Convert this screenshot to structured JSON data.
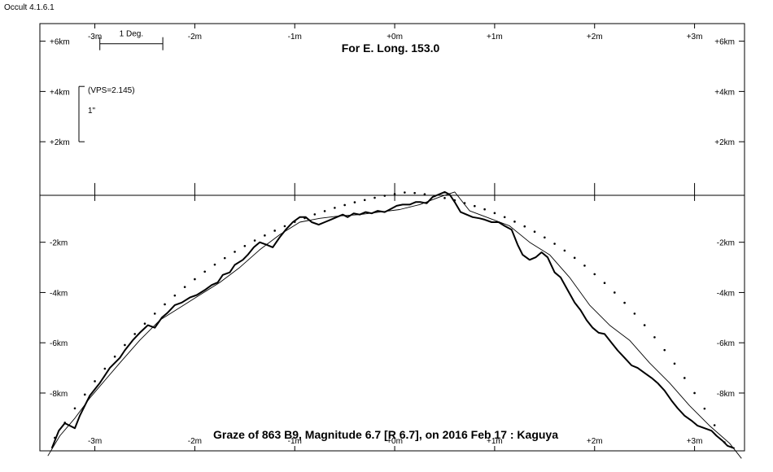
{
  "app": {
    "title": "Occult 4.1.6.1"
  },
  "chart_data": {
    "type": "line",
    "title": "For E. Long. 153.0",
    "footer": "Graze of  863 B9,  Magnitude 6.7 [R 6.7],  on 2016 Feb 17  :  Kaguya",
    "x_ticks": [
      "-3m",
      "-2m",
      "-1m",
      "+0m",
      "+1m",
      "+2m",
      "+3m"
    ],
    "x_tick_values": [
      -3,
      -2,
      -1,
      0,
      1,
      2,
      3
    ],
    "y_ticks": [
      "+6km",
      "+4km",
      "+2km",
      "-2km",
      "-4km",
      "-6km",
      "-8km"
    ],
    "y_tick_values": [
      6,
      4,
      2,
      -2,
      -4,
      -6,
      -8
    ],
    "xlim": [
      -3.55,
      3.5
    ],
    "ylim": [
      -10.3,
      6.7
    ],
    "grid": false,
    "scale_bar": {
      "label": "1 Deg.",
      "x_from": -2.95,
      "x_to": -2.32,
      "y": 5.9
    },
    "vertical_scale": {
      "label": "(VPS=2.145)",
      "sublabel": "1\"",
      "y_from": 2.0,
      "y_to": 4.2
    },
    "series": [
      {
        "style": "bold",
        "x": [
          -3.43,
          -3.36,
          -3.3,
          -3.25,
          -3.2,
          -3.15,
          -3.05,
          -2.95,
          -2.85,
          -2.75,
          -2.7,
          -2.62,
          -2.55,
          -2.47,
          -2.4,
          -2.33,
          -2.27,
          -2.2,
          -2.13,
          -2.05,
          -1.98,
          -1.9,
          -1.83,
          -1.77,
          -1.72,
          -1.65,
          -1.6,
          -1.52,
          -1.47,
          -1.41,
          -1.35,
          -1.28,
          -1.22,
          -1.15,
          -1.09,
          -1.02,
          -0.95,
          -0.89,
          -0.83,
          -0.76,
          -0.7,
          -0.64,
          -0.58,
          -0.52,
          -0.47,
          -0.41,
          -0.35,
          -0.29,
          -0.23,
          -0.17,
          -0.1,
          -0.05,
          0.02,
          0.08,
          0.15,
          0.21,
          0.26,
          0.32,
          0.38,
          0.44,
          0.5,
          0.55,
          0.6,
          0.66,
          0.72,
          0.78,
          0.85,
          0.9,
          0.97,
          1.04,
          1.1,
          1.17,
          1.23,
          1.28,
          1.35,
          1.41,
          1.47,
          1.53,
          1.6,
          1.66,
          1.73,
          1.8,
          1.86,
          1.92,
          1.98,
          2.04,
          2.1,
          2.17,
          2.23,
          2.3,
          2.37,
          2.43,
          2.5,
          2.57,
          2.63,
          2.7,
          2.77,
          2.83,
          2.9,
          2.97,
          3.03,
          3.1,
          3.17,
          3.22,
          3.28,
          3.33,
          3.4
        ],
        "y": [
          -10.2,
          -9.5,
          -9.2,
          -9.3,
          -9.4,
          -8.9,
          -8.1,
          -7.6,
          -7.0,
          -6.6,
          -6.3,
          -5.9,
          -5.6,
          -5.3,
          -5.4,
          -5.0,
          -4.8,
          -4.5,
          -4.4,
          -4.2,
          -4.1,
          -3.9,
          -3.7,
          -3.6,
          -3.3,
          -3.2,
          -2.9,
          -2.7,
          -2.5,
          -2.2,
          -2.0,
          -2.1,
          -2.2,
          -1.8,
          -1.5,
          -1.2,
          -1.0,
          -1.0,
          -1.2,
          -1.3,
          -1.2,
          -1.1,
          -1.0,
          -0.9,
          -1.0,
          -0.85,
          -0.9,
          -0.8,
          -0.85,
          -0.75,
          -0.8,
          -0.7,
          -0.55,
          -0.5,
          -0.5,
          -0.4,
          -0.4,
          -0.45,
          -0.2,
          -0.1,
          -0.0,
          -0.1,
          -0.4,
          -0.8,
          -0.9,
          -1.0,
          -1.05,
          -1.1,
          -1.2,
          -1.2,
          -1.35,
          -1.5,
          -2.1,
          -2.5,
          -2.7,
          -2.6,
          -2.4,
          -2.6,
          -3.2,
          -3.4,
          -3.9,
          -4.4,
          -4.7,
          -5.1,
          -5.4,
          -5.6,
          -5.65,
          -6.0,
          -6.3,
          -6.6,
          -6.9,
          -7.0,
          -7.2,
          -7.4,
          -7.6,
          -7.9,
          -8.3,
          -8.6,
          -8.9,
          -9.1,
          -9.3,
          -9.4,
          -9.5,
          -9.7,
          -9.9,
          -10.1,
          -10.2
        ]
      },
      {
        "style": "thin",
        "x": [
          -3.47,
          -3.35,
          -3.2,
          -3.05,
          -2.9,
          -2.75,
          -2.55,
          -2.35,
          -2.15,
          -1.95,
          -1.75,
          -1.55,
          -1.35,
          -1.15,
          -0.95,
          -0.75,
          -0.55,
          -0.35,
          -0.15,
          0.05,
          0.25,
          0.45,
          0.6,
          0.75,
          0.95,
          1.15,
          1.35,
          1.55,
          1.75,
          1.95,
          2.15,
          2.35,
          2.55,
          2.75,
          2.95,
          3.15,
          3.35,
          3.47
        ],
        "y": [
          -10.5,
          -9.7,
          -9.0,
          -8.2,
          -7.5,
          -6.8,
          -5.9,
          -5.1,
          -4.6,
          -4.1,
          -3.6,
          -3.0,
          -2.3,
          -1.7,
          -1.2,
          -1.05,
          -0.95,
          -0.9,
          -0.8,
          -0.7,
          -0.5,
          -0.2,
          0.0,
          -0.75,
          -1.05,
          -1.35,
          -2.0,
          -2.5,
          -3.4,
          -4.5,
          -5.3,
          -5.9,
          -6.8,
          -7.6,
          -8.5,
          -9.3,
          -10.0,
          -10.6
        ]
      },
      {
        "style": "dotted",
        "x": [
          -3.4,
          -3.3,
          -3.2,
          -3.1,
          -3.0,
          -2.9,
          -2.8,
          -2.7,
          -2.6,
          -2.5,
          -2.4,
          -2.3,
          -2.2,
          -2.1,
          -2.0,
          -1.9,
          -1.8,
          -1.7,
          -1.6,
          -1.5,
          -1.4,
          -1.3,
          -1.2,
          -1.1,
          -1.0,
          -0.9,
          -0.8,
          -0.7,
          -0.6,
          -0.5,
          -0.4,
          -0.3,
          -0.2,
          -0.1,
          0.0,
          0.1,
          0.2,
          0.3,
          0.4,
          0.5,
          0.6,
          0.7,
          0.8,
          0.9,
          1.0,
          1.1,
          1.2,
          1.3,
          1.4,
          1.5,
          1.6,
          1.7,
          1.8,
          1.9,
          2.0,
          2.1,
          2.2,
          2.3,
          2.4,
          2.5,
          2.6,
          2.7,
          2.8,
          2.9,
          3.0,
          3.1,
          3.2,
          3.3,
          3.4
        ],
        "y": [
          -9.78,
          -9.18,
          -8.61,
          -8.06,
          -7.53,
          -7.03,
          -6.55,
          -6.09,
          -5.65,
          -5.24,
          -4.84,
          -4.47,
          -4.12,
          -3.78,
          -3.47,
          -3.17,
          -2.89,
          -2.63,
          -2.38,
          -2.15,
          -1.93,
          -1.73,
          -1.54,
          -1.36,
          -1.19,
          -1.04,
          -0.89,
          -0.76,
          -0.63,
          -0.52,
          -0.41,
          -0.32,
          -0.23,
          -0.15,
          -0.08,
          -0.02,
          -0.04,
          -0.09,
          -0.16,
          -0.24,
          -0.33,
          -0.44,
          -0.56,
          -0.69,
          -0.84,
          -1.0,
          -1.18,
          -1.37,
          -1.58,
          -1.81,
          -2.06,
          -2.33,
          -2.62,
          -2.93,
          -3.27,
          -3.62,
          -4.0,
          -4.41,
          -4.84,
          -5.3,
          -5.78,
          -6.29,
          -6.83,
          -7.4,
          -8.0,
          -8.62,
          -9.28,
          -9.96,
          -10.68
        ]
      }
    ]
  }
}
